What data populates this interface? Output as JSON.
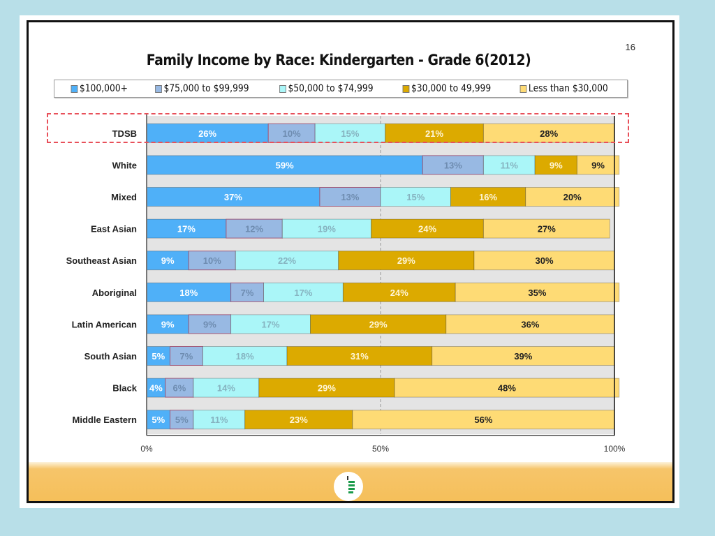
{
  "slide": {
    "page_number": "16",
    "logo_icon": "school-board-logo"
  },
  "chart_data": {
    "type": "bar",
    "orientation": "horizontal",
    "stacked": "percent",
    "title": "Family Income by Race: Kindergarten - Grade 6(2012)",
    "xlabel": "",
    "ylabel": "",
    "xlim": [
      0,
      100
    ],
    "x_ticks": [
      "0%",
      "50%",
      "100%"
    ],
    "grid": "dashed line at 50%",
    "legend_position": "top",
    "highlighted_category": "TDSB",
    "categories": [
      "TDSB",
      "White",
      "Mixed",
      "East Asian",
      "Southeast Asian",
      "Aboriginal",
      "Latin American",
      "South Asian",
      "Black",
      "Middle Eastern"
    ],
    "series": [
      {
        "name": "$100,000+",
        "color": "#4fb0f8",
        "label_color": "#ffffff",
        "values": [
          26,
          59,
          37,
          17,
          9,
          18,
          9,
          5,
          4,
          5
        ]
      },
      {
        "name": "$75,000 to $99,999",
        "color": "#98b9e3",
        "label_color": "#6e8cb0",
        "values": [
          10,
          13,
          13,
          12,
          10,
          7,
          9,
          7,
          6,
          5
        ]
      },
      {
        "name": "$50,000 to $74,999",
        "color": "#aaf6f8",
        "label_color": "#86b3c0",
        "values": [
          15,
          11,
          15,
          19,
          22,
          17,
          17,
          18,
          14,
          11
        ]
      },
      {
        "name": "$30,000 to 49,999",
        "color": "#dcaa00",
        "label_color": "#fff6d8",
        "values": [
          21,
          9,
          16,
          24,
          29,
          24,
          29,
          31,
          29,
          23
        ]
      },
      {
        "name": "Less than $30,000",
        "color": "#fedb75",
        "label_color": "#222222",
        "values": [
          28,
          9,
          20,
          27,
          30,
          35,
          36,
          39,
          48,
          56
        ]
      }
    ]
  }
}
